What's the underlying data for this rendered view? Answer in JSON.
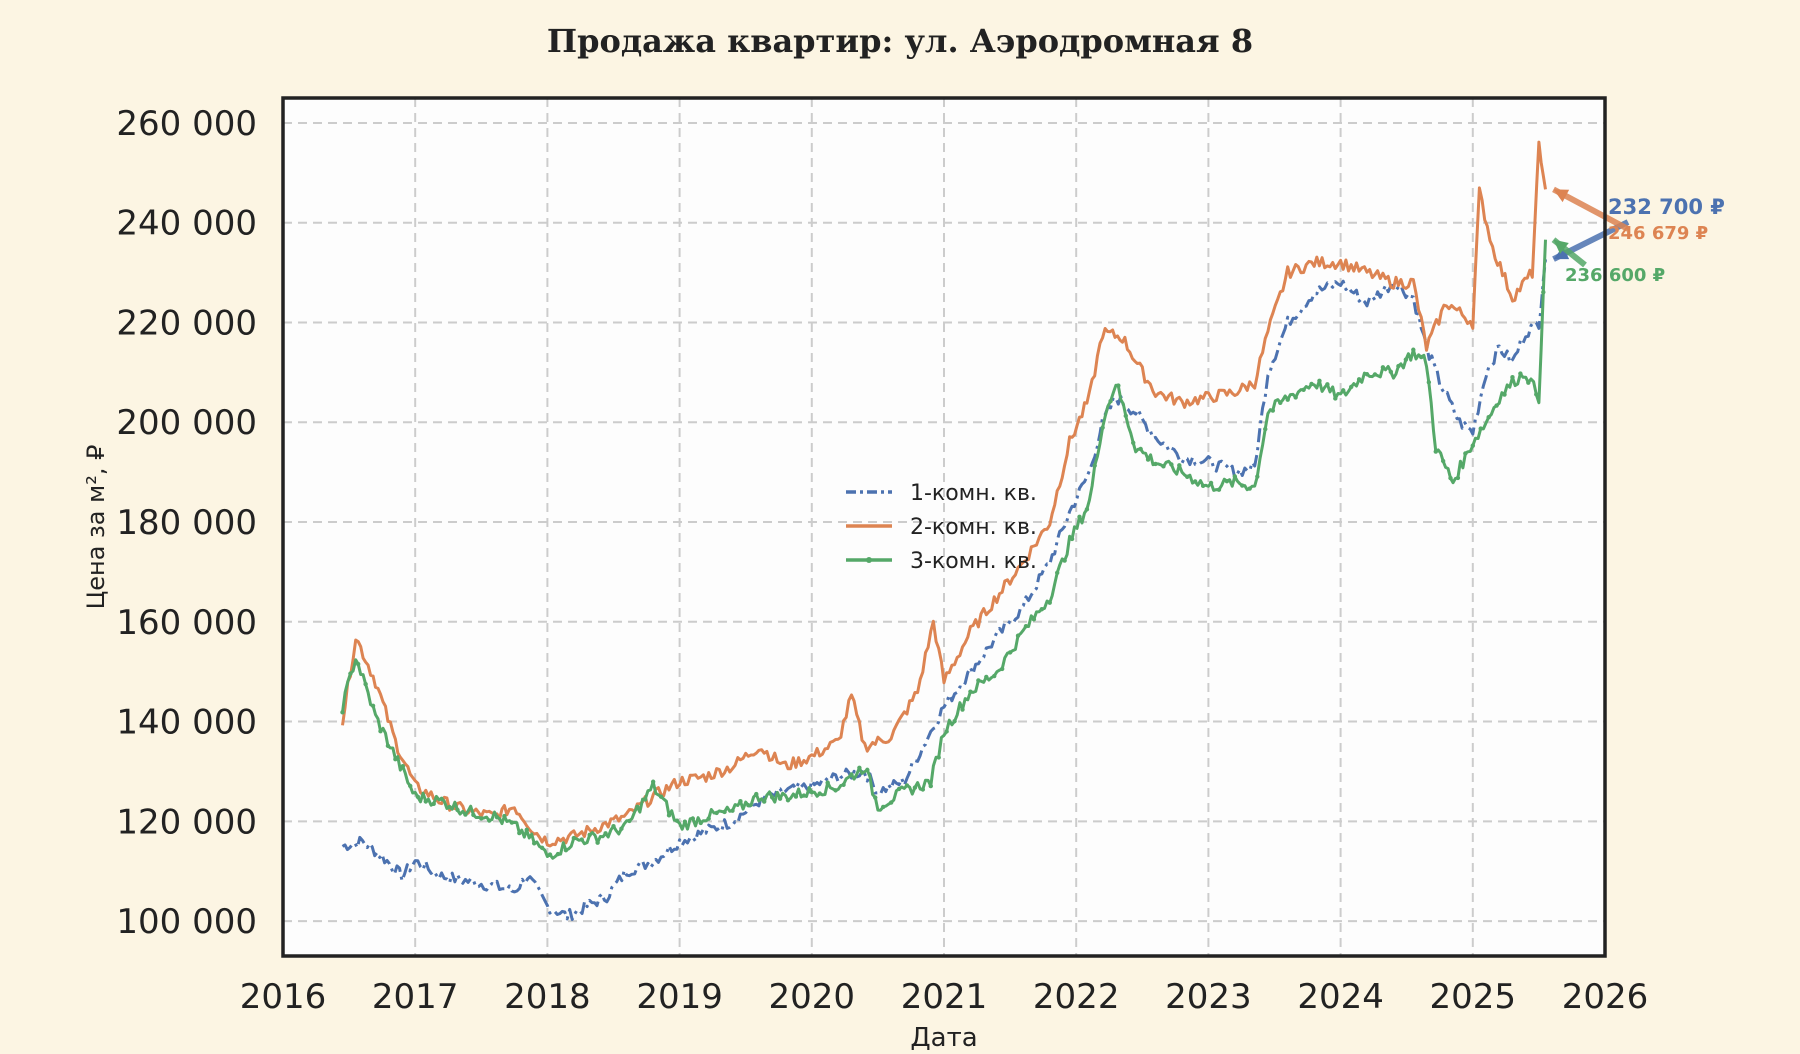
{
  "chart_data": {
    "type": "line",
    "title": "Продажа квартир: ул. Аэродромная 8",
    "xlabel": "Дата",
    "ylabel": "Цена за м², ₽",
    "xlim": [
      2016,
      2026
    ],
    "ylim": [
      93000,
      265000
    ],
    "x_ticks": [
      2016,
      2017,
      2018,
      2019,
      2020,
      2021,
      2022,
      2023,
      2024,
      2025,
      2026
    ],
    "x_tick_labels": [
      "2016",
      "2017",
      "2018",
      "2019",
      "2020",
      "2021",
      "2022",
      "2023",
      "2024",
      "2025",
      "2026"
    ],
    "y_ticks": [
      100000,
      120000,
      140000,
      160000,
      180000,
      200000,
      220000,
      240000,
      260000
    ],
    "y_tick_labels": [
      "100 000",
      "120 000",
      "140 000",
      "160 000",
      "180 000",
      "200 000",
      "220 000",
      "240 000",
      "260 000"
    ],
    "grid": true,
    "legend_position": "center",
    "series": [
      {
        "name": "1-комн. кв.",
        "color": "#4c72b0",
        "line_style": "dash-dot",
        "x": [
          2016.45,
          2016.6,
          2016.75,
          2016.9,
          2017.0,
          2017.2,
          2017.4,
          2017.6,
          2017.75,
          2017.85,
          2018.0,
          2018.15,
          2018.3,
          2018.45,
          2018.6,
          2018.8,
          2019.0,
          2019.2,
          2019.4,
          2019.6,
          2019.8,
          2020.0,
          2020.2,
          2020.4,
          2020.5,
          2020.7,
          2020.9,
          2021.0,
          2021.2,
          2021.4,
          2021.6,
          2021.8,
          2021.95,
          2022.1,
          2022.2,
          2022.3,
          2022.45,
          2022.6,
          2022.8,
          2023.0,
          2023.2,
          2023.35,
          2023.45,
          2023.6,
          2023.8,
          2024.0,
          2024.2,
          2024.4,
          2024.55,
          2024.65,
          2024.75,
          2024.9,
          2025.0,
          2025.1,
          2025.2,
          2025.3,
          2025.4,
          2025.5,
          2025.55
        ],
        "y": [
          115000,
          116000,
          113000,
          109000,
          112000,
          109000,
          108000,
          107000,
          106000,
          109000,
          103000,
          101000,
          103000,
          105000,
          110000,
          112000,
          116000,
          118000,
          120000,
          124000,
          126000,
          127000,
          129000,
          130000,
          126000,
          128000,
          138000,
          143000,
          150000,
          157000,
          163000,
          172000,
          182000,
          190000,
          200000,
          205000,
          202000,
          197000,
          193000,
          192000,
          190000,
          191000,
          210000,
          220000,
          226000,
          228000,
          224000,
          228000,
          225000,
          215000,
          208000,
          200000,
          198000,
          210000,
          215000,
          212000,
          218000,
          220000,
          232700
        ]
      },
      {
        "name": "2-комн. кв.",
        "color": "#dd8452",
        "line_style": "solid",
        "x": [
          2016.45,
          2016.55,
          2016.7,
          2016.85,
          2017.0,
          2017.2,
          2017.4,
          2017.6,
          2017.75,
          2017.9,
          2018.0,
          2018.2,
          2018.4,
          2018.6,
          2018.8,
          2019.0,
          2019.2,
          2019.4,
          2019.6,
          2019.8,
          2020.0,
          2020.2,
          2020.3,
          2020.4,
          2020.6,
          2020.8,
          2020.92,
          2021.0,
          2021.2,
          2021.4,
          2021.6,
          2021.8,
          2021.95,
          2022.1,
          2022.2,
          2022.35,
          2022.5,
          2022.6,
          2022.8,
          2023.0,
          2023.2,
          2023.35,
          2023.45,
          2023.6,
          2023.8,
          2024.0,
          2024.2,
          2024.4,
          2024.55,
          2024.65,
          2024.8,
          2025.0,
          2025.05,
          2025.15,
          2025.3,
          2025.45,
          2025.5,
          2025.55
        ],
        "y": [
          140000,
          157000,
          148000,
          136000,
          127000,
          124000,
          122000,
          121000,
          123000,
          118000,
          116000,
          117000,
          119000,
          121000,
          125000,
          128000,
          129000,
          131000,
          135000,
          131000,
          133000,
          136000,
          145000,
          135000,
          137000,
          146000,
          160000,
          148000,
          158000,
          165000,
          172000,
          180000,
          196000,
          205000,
          218000,
          217000,
          210000,
          206000,
          204000,
          205000,
          206000,
          208000,
          218000,
          230000,
          232000,
          232000,
          230000,
          228000,
          228000,
          215000,
          224000,
          220000,
          246000,
          235000,
          225000,
          230000,
          255000,
          246679
        ]
      },
      {
        "name": "3-комн. кв.",
        "color": "#55a868",
        "line_style": "solid-marker",
        "x": [
          2016.45,
          2016.55,
          2016.7,
          2016.85,
          2017.0,
          2017.2,
          2017.4,
          2017.6,
          2017.75,
          2017.9,
          2018.0,
          2018.2,
          2018.4,
          2018.6,
          2018.8,
          2019.0,
          2019.2,
          2019.4,
          2019.6,
          2019.8,
          2020.0,
          2020.2,
          2020.4,
          2020.5,
          2020.7,
          2020.9,
          2021.0,
          2021.2,
          2021.4,
          2021.6,
          2021.8,
          2021.95,
          2022.1,
          2022.2,
          2022.3,
          2022.45,
          2022.6,
          2022.8,
          2023.0,
          2023.2,
          2023.35,
          2023.45,
          2023.6,
          2023.8,
          2024.0,
          2024.2,
          2024.4,
          2024.55,
          2024.65,
          2024.72,
          2024.85,
          2025.0,
          2025.1,
          2025.2,
          2025.3,
          2025.4,
          2025.5,
          2025.55
        ],
        "y": [
          143000,
          153000,
          141000,
          133000,
          125000,
          124000,
          122000,
          121000,
          119000,
          116000,
          113000,
          116000,
          117000,
          119000,
          127000,
          119000,
          121000,
          122000,
          125000,
          125000,
          126000,
          127000,
          131000,
          123000,
          126000,
          128000,
          138000,
          146000,
          150000,
          158000,
          165000,
          176000,
          184000,
          200000,
          208000,
          195000,
          192000,
          190000,
          187000,
          188000,
          187000,
          202000,
          205000,
          208000,
          205000,
          210000,
          210000,
          214000,
          212000,
          195000,
          188000,
          196000,
          200000,
          205000,
          208000,
          210000,
          205000,
          236600
        ]
      }
    ],
    "annotations": [
      {
        "text": "232 700 ₽",
        "color": "#4c72b0",
        "series": "1-комн. кв.",
        "value": 232700
      },
      {
        "text": "246 679 ₽",
        "color": "#dd8452",
        "series": "2-комн. кв.",
        "value": 246679
      },
      {
        "text": "236 600 ₽",
        "color": "#55a868",
        "series": "3-комн. кв.",
        "value": 236600
      }
    ]
  }
}
